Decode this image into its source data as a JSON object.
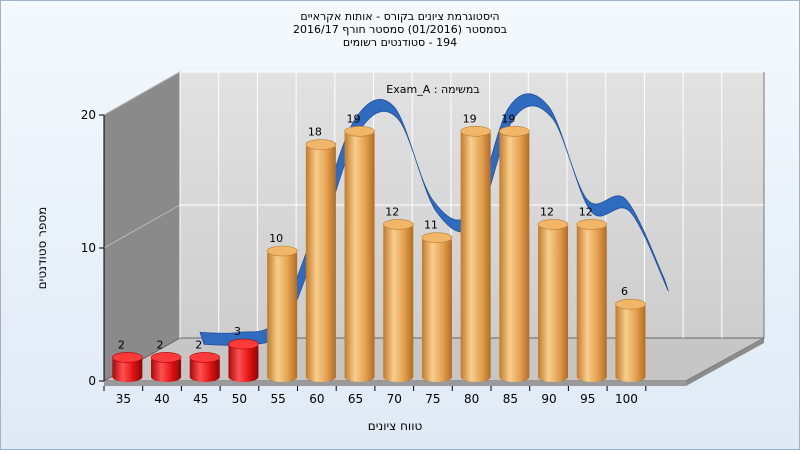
{
  "title": {
    "line1": "היסטוגרמת ציונים בקורס - אותות אקראיים",
    "line2": "בסמסטר  (01/2016)  סמסטר חורף 2016/17",
    "line3": "194 - סטודנטים רשומים"
  },
  "colors": {
    "fail": "#e01010",
    "pass": "#e8a24c",
    "curve": "#2f6bbf",
    "wall_left": "#888888",
    "wall_back": "#d8d8d8",
    "floor": "#c8c8c8"
  },
  "chart_data": {
    "type": "bar",
    "title": "היסטוגרמת ציונים בקורס - אותות אקראיים",
    "xlabel": "טווח ציונים",
    "ylabel": "מספר סטודנטים",
    "ylim": [
      0,
      20
    ],
    "yticks": [
      0,
      10,
      20
    ],
    "grid": true,
    "categories": [
      "35",
      "40",
      "45",
      "50",
      "55",
      "60",
      "65",
      "70",
      "75",
      "80",
      "85",
      "90",
      "95",
      "100"
    ],
    "series": [
      {
        "values": [
          2,
          2,
          2,
          3,
          10,
          18,
          19,
          12,
          11,
          19,
          19,
          12,
          12,
          6
        ],
        "labels": [
          "2",
          "2",
          "2",
          "3",
          "10",
          "18",
          "19",
          "12",
          "11",
          "19",
          "19",
          "12",
          "12",
          "6"
        ],
        "fail_threshold_index": 4
      },
      {
        "name": "Exam_A : במשימה",
        "type": "area3d",
        "values": [
          null,
          2,
          2,
          3,
          10,
          18,
          19,
          12,
          11,
          19,
          19,
          12,
          12,
          6
        ]
      }
    ]
  }
}
